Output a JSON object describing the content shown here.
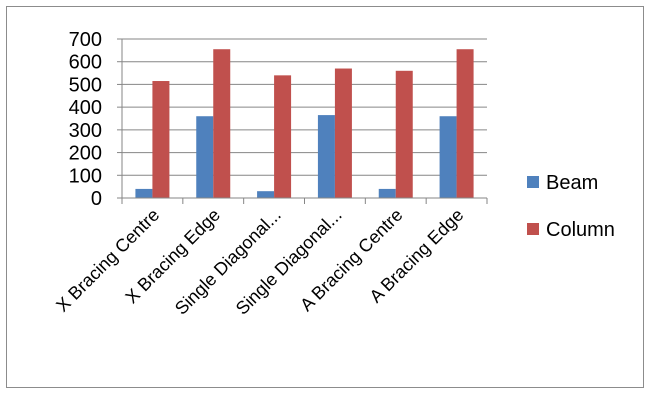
{
  "chart_data": {
    "type": "bar",
    "categories": [
      "X Bracing Centre",
      "X Bracing Edge",
      "Single Diagonal...",
      "Single Diagonal...",
      "A Bracing Centre",
      "A Bracing Edge"
    ],
    "series": [
      {
        "name": "Beam",
        "color": "#4f81bd",
        "values": [
          40,
          360,
          30,
          365,
          40,
          360
        ]
      },
      {
        "name": "Column",
        "color": "#c0504d",
        "values": [
          515,
          655,
          540,
          570,
          560,
          655
        ]
      }
    ],
    "title": "",
    "xlabel": "",
    "ylabel": "",
    "ylim": [
      0,
      700
    ],
    "yticks": [
      0,
      100,
      200,
      300,
      400,
      500,
      600,
      700
    ],
    "grid": true,
    "gridline_color": "#868686",
    "legend_position": "right"
  }
}
